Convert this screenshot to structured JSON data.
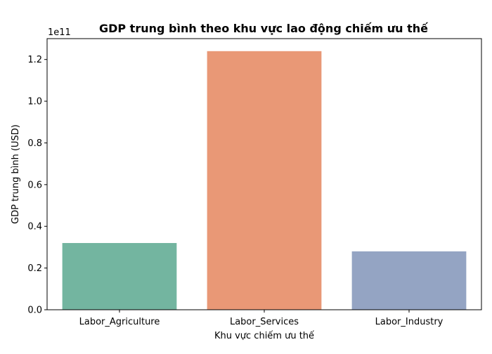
{
  "chart_data": {
    "type": "bar",
    "title": "GDP trung bình theo khu vực lao động chiếm ưu thế",
    "xlabel": "Khu vực chiếm ưu thế",
    "ylabel": "GDP trung bình (USD)",
    "y_offset_label": "1e11",
    "categories": [
      "Labor_Agriculture",
      "Labor_Services",
      "Labor_Industry"
    ],
    "values": [
      32000000000,
      124000000000,
      28000000000
    ],
    "colors": [
      "#73b5a0",
      "#e99876",
      "#94a4c3"
    ],
    "ylim": [
      0,
      130000000000
    ],
    "yticks": [
      0,
      20000000000,
      40000000000,
      60000000000,
      80000000000,
      100000000000,
      120000000000
    ],
    "ytick_labels": [
      "0.0",
      "0.2",
      "0.4",
      "0.6",
      "0.8",
      "1.0",
      "1.2"
    ],
    "grid": false,
    "legend": "none"
  }
}
